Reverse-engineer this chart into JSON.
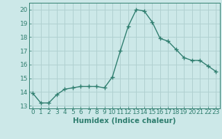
{
  "x": [
    0,
    1,
    2,
    3,
    4,
    5,
    6,
    7,
    8,
    9,
    10,
    11,
    12,
    13,
    14,
    15,
    16,
    17,
    18,
    19,
    20,
    21,
    22,
    23
  ],
  "y": [
    13.9,
    13.2,
    13.2,
    13.8,
    14.2,
    14.3,
    14.4,
    14.4,
    14.4,
    14.3,
    15.1,
    17.0,
    18.8,
    20.0,
    19.9,
    19.1,
    17.9,
    17.7,
    17.1,
    16.5,
    16.3,
    16.3,
    15.9,
    15.5
  ],
  "line_color": "#2e7d6e",
  "marker": "+",
  "markersize": 4,
  "linewidth": 1.0,
  "xlabel": "Humidex (Indice chaleur)",
  "xlim": [
    -0.5,
    23.5
  ],
  "ylim": [
    12.8,
    20.5
  ],
  "yticks": [
    13,
    14,
    15,
    16,
    17,
    18,
    19,
    20
  ],
  "xticks": [
    0,
    1,
    2,
    3,
    4,
    5,
    6,
    7,
    8,
    9,
    10,
    11,
    12,
    13,
    14,
    15,
    16,
    17,
    18,
    19,
    20,
    21,
    22,
    23
  ],
  "bg_color": "#cce8e8",
  "grid_color": "#b0d0d0",
  "tick_fontsize": 6.5,
  "xlabel_fontsize": 7.5,
  "xlabel_fontweight": "bold"
}
